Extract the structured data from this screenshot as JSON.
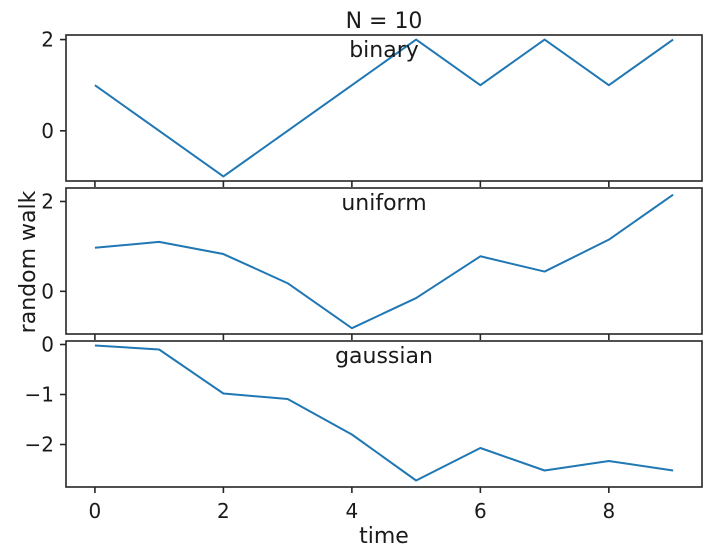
{
  "chart_data": {
    "type": "line",
    "title": "N = 10",
    "xlabel": "time",
    "ylabel": "random walk",
    "x": [
      0,
      1,
      2,
      3,
      4,
      5,
      6,
      7,
      8,
      9
    ],
    "xlim": [
      -0.45,
      9.45
    ],
    "xticks": [
      0,
      2,
      4,
      6,
      8
    ],
    "line_color": "#1f77b4",
    "panels": [
      {
        "label": "binary",
        "values": [
          1,
          0,
          -1,
          0,
          1,
          2,
          1,
          2,
          1,
          2
        ],
        "ylim": [
          -1.1,
          2.1
        ],
        "yticks": [
          0,
          2
        ],
        "ytick_labels": [
          "0",
          "2"
        ]
      },
      {
        "label": "uniform",
        "values": [
          0.97,
          1.1,
          0.83,
          0.18,
          -0.82,
          -0.15,
          0.78,
          0.44,
          1.15,
          2.15
        ],
        "ylim": [
          -0.95,
          2.3
        ],
        "yticks": [
          0,
          2
        ],
        "ytick_labels": [
          "0",
          "2"
        ]
      },
      {
        "label": "gaussian",
        "values": [
          -0.02,
          -0.1,
          -0.98,
          -1.09,
          -1.8,
          -2.72,
          -2.07,
          -2.52,
          -2.33,
          -2.52
        ],
        "ylim": [
          -2.85,
          0.07
        ],
        "yticks": [
          0,
          -1,
          -2
        ],
        "ytick_labels": [
          "0",
          "−1",
          "−2"
        ]
      }
    ]
  }
}
